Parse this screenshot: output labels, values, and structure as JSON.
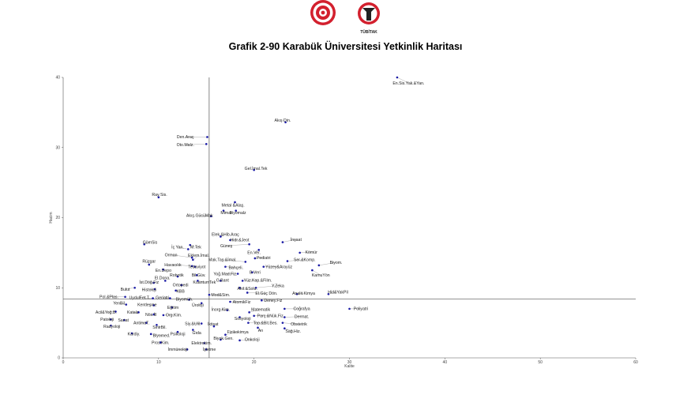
{
  "header": {
    "logo_left": "ministry-gear-logo",
    "logo_right": "tubitak-logo",
    "logo_right_text": "TÜBİTAK"
  },
  "colors": {
    "point": "#1a1aa6",
    "line": "#555555",
    "logo_red": "#d3202e",
    "logo_dark": "#222222"
  },
  "chart_data": {
    "type": "scatter",
    "title": "Grafik 2-90 Karabük Üniversitesi Yetkinlik Haritası",
    "xlabel": "Kalite",
    "ylabel": "Hacim",
    "xlim": [
      0,
      60
    ],
    "ylim": [
      0,
      40
    ],
    "xticks": [
      0,
      10,
      20,
      30,
      40,
      50,
      60
    ],
    "yticks": [
      0,
      10,
      20,
      30,
      40
    ],
    "ref_x": 15.3,
    "ref_y": 8.4,
    "grid": false,
    "points": [
      {
        "label": "En.Sis.Yak.&Yan.",
        "x": 35.0,
        "y": 40.0,
        "lx": 36.2,
        "ly": 39.2
      },
      {
        "label": "Akış Din.",
        "x": 23.3,
        "y": 33.6,
        "lx": 23.0,
        "ly": 33.9
      },
      {
        "label": "Den.Araç",
        "x": 15.1,
        "y": 31.5,
        "lx": 12.8,
        "ly": 31.5
      },
      {
        "label": "Oto.Malz.",
        "x": 15.0,
        "y": 30.5,
        "lx": 12.8,
        "ly": 30.4
      },
      {
        "label": "Gel.İmal.Tek",
        "x": 20.0,
        "y": 26.8,
        "lx": 20.2,
        "ly": 27.0
      },
      {
        "label": "Ray Sis.",
        "x": 10.0,
        "y": 22.9,
        "lx": 10.1,
        "ly": 23.3
      },
      {
        "label": "Metal &Alaş.",
        "x": 18.0,
        "y": 22.2,
        "lx": 17.8,
        "ly": 21.8
      },
      {
        "label": "Mimar",
        "x": 16.8,
        "y": 21.0,
        "lx": 17.1,
        "ly": 20.7
      },
      {
        "label": "Biyomalz",
        "x": 18.1,
        "y": 21.0,
        "lx": 18.3,
        "ly": 20.7
      },
      {
        "label": "Akış.GücüMak",
        "x": 15.5,
        "y": 20.2,
        "lx": 14.3,
        "ly": 20.3
      },
      {
        "label": "Elek.&Hib.Araç",
        "x": 16.5,
        "y": 17.3,
        "lx": 17.0,
        "ly": 17.6
      },
      {
        "label": "Hidr.&Jeot",
        "x": 17.5,
        "y": 16.8,
        "lx": 18.5,
        "ly": 16.8
      },
      {
        "label": "Güneş",
        "x": 19.5,
        "y": 16.2,
        "lx": 17.1,
        "ly": 16.0
      },
      {
        "label": "İnşaat",
        "x": 23.0,
        "y": 16.5,
        "lx": 24.4,
        "ly": 16.9
      },
      {
        "label": "GömSis",
        "x": 8.5,
        "y": 16.2,
        "lx": 9.1,
        "ly": 16.5
      },
      {
        "label": "İç Yan.",
        "x": 13.1,
        "y": 15.5,
        "lx": 12.0,
        "ly": 15.8
      },
      {
        "label": "M.Tek",
        "x": 13.3,
        "y": 16.1,
        "lx": 13.9,
        "ly": 15.8
      },
      {
        "label": "En.Ver.",
        "x": 20.5,
        "y": 15.4,
        "lx": 20.0,
        "ly": 15.0
      },
      {
        "label": "Kömür",
        "x": 24.8,
        "y": 15.0,
        "lx": 26.0,
        "ly": 15.1
      },
      {
        "label": "Orman",
        "x": 13.5,
        "y": 14.3,
        "lx": 11.3,
        "ly": 14.7
      },
      {
        "label": "Eklem.İmal.",
        "x": 13.6,
        "y": 14.0,
        "lx": 14.2,
        "ly": 14.6
      },
      {
        "label": "Pediatri",
        "x": 20.1,
        "y": 14.2,
        "lx": 21.0,
        "ly": 14.3
      },
      {
        "label": "Ser.&Komp.",
        "x": 23.5,
        "y": 13.8,
        "lx": 25.3,
        "ly": 14.0
      },
      {
        "label": "Mak.Taş.&İmal.",
        "x": 19.1,
        "y": 13.7,
        "lx": 16.7,
        "ly": 14.0
      },
      {
        "label": "Biyom.",
        "x": 26.8,
        "y": 13.2,
        "lx": 28.6,
        "ly": 13.6
      },
      {
        "label": "Rüzgar",
        "x": 9.0,
        "y": 13.3,
        "lx": 9.0,
        "ly": 13.8
      },
      {
        "label": "Havacılık",
        "x": 13.5,
        "y": 13.1,
        "lx": 11.5,
        "ly": 13.3
      },
      {
        "label": "Tedaviyot",
        "x": 13.8,
        "y": 13.0,
        "lx": 14.0,
        "ly": 13.0
      },
      {
        "label": "Bahçeli.",
        "x": 17.0,
        "y": 13.0,
        "lx": 18.1,
        "ly": 12.9
      },
      {
        "label": "Yüzey&Arayüz",
        "x": 21.0,
        "y": 13.0,
        "lx": 22.6,
        "ly": 13.0
      },
      {
        "label": "En.Depo",
        "x": 10.5,
        "y": 12.6,
        "lx": 10.5,
        "ly": 12.5
      },
      {
        "label": "B.Veri",
        "x": 19.8,
        "y": 12.2,
        "lx": 20.1,
        "ly": 12.2
      },
      {
        "label": "KamuYön",
        "x": 26.1,
        "y": 12.5,
        "lx": 27.0,
        "ly": 11.8
      },
      {
        "label": "Yoğ.Mad.Fiz.",
        "x": 18.3,
        "y": 12.0,
        "lx": 17.0,
        "ly": 12.0
      },
      {
        "label": "Robotik",
        "x": 12.0,
        "y": 11.6,
        "lx": 11.9,
        "ly": 11.8
      },
      {
        "label": "Bil.Güv.",
        "x": 14.0,
        "y": 11.8,
        "lx": 14.2,
        "ly": 11.8
      },
      {
        "label": "El.Dona.",
        "x": 10.7,
        "y": 11.0,
        "lx": 10.4,
        "ly": 11.4
      },
      {
        "label": "G.Bant",
        "x": 16.5,
        "y": 11.0,
        "lx": 16.7,
        "ly": 11.1
      },
      {
        "label": "Yüz.Kap.&Film.",
        "x": 18.8,
        "y": 11.0,
        "lx": 20.4,
        "ly": 11.1
      },
      {
        "label": "KuantumTek",
        "x": 14.1,
        "y": 11.0,
        "lx": 14.8,
        "ly": 10.8
      },
      {
        "label": "İst.Döğ.Fiz",
        "x": 9.5,
        "y": 10.7,
        "lx": 9.0,
        "ly": 10.8
      },
      {
        "label": "Ortopedi",
        "x": 12.4,
        "y": 10.4,
        "lx": 12.3,
        "ly": 10.4
      },
      {
        "label": "Y.Zeka",
        "x": 20.2,
        "y": 10.0,
        "lx": 22.5,
        "ly": 10.3
      },
      {
        "label": "Akıl.&Solu.",
        "x": 18.5,
        "y": 10.0,
        "lx": 19.3,
        "ly": 9.9
      },
      {
        "label": "Bulut",
        "x": 7.5,
        "y": 10.0,
        "lx": 6.5,
        "ly": 9.8
      },
      {
        "label": "Histoloji",
        "x": 9.6,
        "y": 9.8,
        "lx": 9.0,
        "ly": 9.7
      },
      {
        "label": "KBB",
        "x": 11.8,
        "y": 9.6,
        "lx": 12.3,
        "ly": 9.5
      },
      {
        "label": "Hid&YakPil",
        "x": 27.8,
        "y": 9.1,
        "lx": 28.8,
        "ly": 9.4
      },
      {
        "label": "El.Güç Dön.",
        "x": 19.3,
        "y": 9.3,
        "lx": 21.3,
        "ly": 9.2
      },
      {
        "label": "Analit.Kimya",
        "x": 24.5,
        "y": 9.1,
        "lx": 25.2,
        "ly": 9.2
      },
      {
        "label": "Mod&Sim.",
        "x": 15.3,
        "y": 9.0,
        "lx": 16.5,
        "ly": 9.0
      },
      {
        "label": "Pol.&Plas.",
        "x": 6.5,
        "y": 8.7,
        "lx": 4.8,
        "ly": 8.7
      },
      {
        "label": "UydulFet.T.",
        "x": 9.4,
        "y": 8.5,
        "lx": 8.0,
        "ly": 8.6
      },
      {
        "label": "Geriatri",
        "x": 11.2,
        "y": 8.5,
        "lx": 10.4,
        "ly": 8.6
      },
      {
        "label": "Biyomüh.",
        "x": 13.2,
        "y": 8.3,
        "lx": 12.7,
        "ly": 8.4
      },
      {
        "label": "Deney.Fiz",
        "x": 20.8,
        "y": 8.2,
        "lx": 22.0,
        "ly": 8.2
      },
      {
        "label": "AtomikFiz",
        "x": 17.5,
        "y": 8.0,
        "lx": 18.7,
        "ly": 8.0
      },
      {
        "label": "YenBil.",
        "x": 6.6,
        "y": 7.6,
        "lx": 5.9,
        "ly": 7.8
      },
      {
        "label": "Kentleşme",
        "x": 9.5,
        "y": 7.5,
        "lx": 8.8,
        "ly": 7.6
      },
      {
        "label": "Üroloji",
        "x": 14.5,
        "y": 7.8,
        "lx": 14.1,
        "ly": 7.5
      },
      {
        "label": "Eğitim",
        "x": 11.4,
        "y": 7.2,
        "lx": 11.5,
        "ly": 7.2
      },
      {
        "label": "Coğrafya",
        "x": 23.2,
        "y": 7.0,
        "lx": 25.0,
        "ly": 7.0
      },
      {
        "label": "Poliyatri",
        "x": 30.0,
        "y": 7.0,
        "lx": 31.2,
        "ly": 7.0
      },
      {
        "label": "İnorg.Kim.",
        "x": 17.2,
        "y": 6.8,
        "lx": 16.5,
        "ly": 6.9
      },
      {
        "label": "Matematik",
        "x": 19.5,
        "y": 6.5,
        "lx": 20.7,
        "ly": 6.9
      },
      {
        "label": "Acil&Yoğ.B.",
        "x": 5.5,
        "y": 6.6,
        "lx": 4.5,
        "ly": 6.5
      },
      {
        "label": "Katalz",
        "x": 7.9,
        "y": 6.5,
        "lx": 7.3,
        "ly": 6.5
      },
      {
        "label": "Nös.İll",
        "x": 9.5,
        "y": 6.2,
        "lx": 9.2,
        "ly": 6.2
      },
      {
        "label": "Org.Kim.",
        "x": 10.5,
        "y": 6.1,
        "lx": 11.6,
        "ly": 6.1
      },
      {
        "label": "Parç.&Nük.Fiz",
        "x": 20.0,
        "y": 6.0,
        "lx": 21.7,
        "ly": 6.0
      },
      {
        "label": "Dermat.",
        "x": 23.2,
        "y": 5.8,
        "lx": 25.0,
        "ly": 5.9
      },
      {
        "label": "Sosyoloji",
        "x": 18.5,
        "y": 5.8,
        "lx": 18.8,
        "ly": 5.6
      },
      {
        "label": "Patoloji",
        "x": 5.0,
        "y": 5.5,
        "lx": 4.6,
        "ly": 5.5
      },
      {
        "label": "Sanat",
        "x": 6.4,
        "y": 5.4,
        "lx": 6.3,
        "ly": 5.4
      },
      {
        "label": "AntimaT.",
        "x": 8.7,
        "y": 5.0,
        "lx": 8.2,
        "ly": 5.0
      },
      {
        "label": "Top.&Bit.Bes.",
        "x": 19.4,
        "y": 5.0,
        "lx": 21.2,
        "ly": 5.0
      },
      {
        "label": "Obstetrik",
        "x": 23.0,
        "y": 5.0,
        "lx": 24.7,
        "ly": 4.8
      },
      {
        "label": "Siy.&Ulil.",
        "x": 14.5,
        "y": 4.9,
        "lx": 13.6,
        "ly": 4.9
      },
      {
        "label": "Radyoloji",
        "x": 5.0,
        "y": 4.6,
        "lx": 5.1,
        "ly": 4.5
      },
      {
        "label": "SinirBil.",
        "x": 9.8,
        "y": 4.7,
        "lx": 10.1,
        "ly": 4.4
      },
      {
        "label": "Psikoloji",
        "x": 12.0,
        "y": 3.7,
        "lx": 12.0,
        "ly": 3.4
      },
      {
        "label": "İktisat",
        "x": 15.8,
        "y": 4.5,
        "lx": 15.7,
        "ly": 4.8
      },
      {
        "label": "Gıda",
        "x": 13.6,
        "y": 4.0,
        "lx": 14.0,
        "ly": 3.6
      },
      {
        "label": "Arı",
        "x": 20.4,
        "y": 4.3,
        "lx": 20.7,
        "ly": 3.9
      },
      {
        "label": "Sağ.Hiz.",
        "x": 23.2,
        "y": 4.2,
        "lx": 24.1,
        "ly": 3.8
      },
      {
        "label": "Fizikokimya",
        "x": 17.0,
        "y": 3.3,
        "lx": 18.3,
        "ly": 3.7
      },
      {
        "label": "Kardiy.",
        "x": 7.2,
        "y": 3.5,
        "lx": 7.4,
        "ly": 3.4
      },
      {
        "label": "Biyomed.",
        "x": 9.2,
        "y": 3.4,
        "lx": 10.3,
        "ly": 3.2
      },
      {
        "label": "Biyok.Gen.",
        "x": 16.5,
        "y": 2.6,
        "lx": 16.8,
        "ly": 2.8
      },
      {
        "label": "Onkoloji",
        "x": 18.5,
        "y": 2.5,
        "lx": 19.8,
        "ly": 2.6
      },
      {
        "label": "Pros.Kim.",
        "x": 10.2,
        "y": 2.2,
        "lx": 10.2,
        "ly": 2.2
      },
      {
        "label": "Elektrokim.",
        "x": 14.8,
        "y": 2.1,
        "lx": 14.5,
        "ly": 2.1
      },
      {
        "label": "İmmünoloji",
        "x": 13.0,
        "y": 1.2,
        "lx": 12.0,
        "ly": 1.2
      },
      {
        "label": "İşletme",
        "x": 15.0,
        "y": 1.2,
        "lx": 15.3,
        "ly": 1.2
      }
    ]
  }
}
